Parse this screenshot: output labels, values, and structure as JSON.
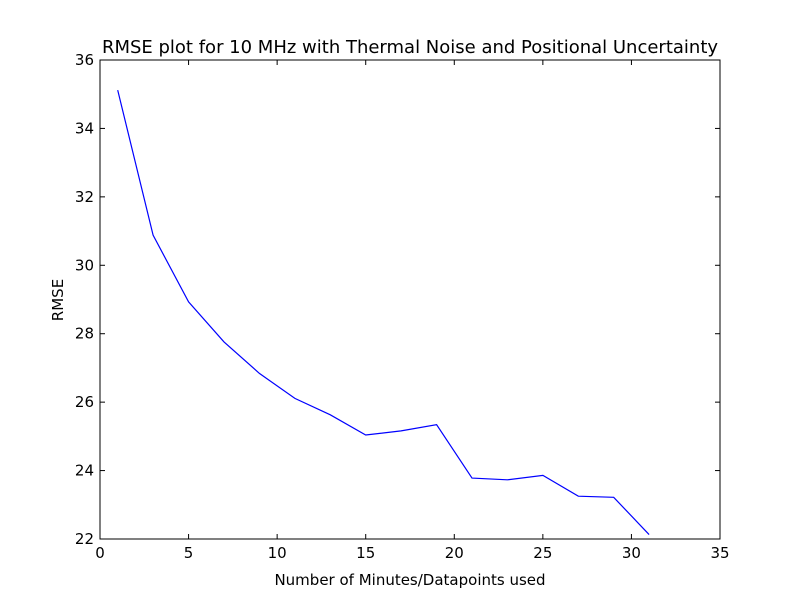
{
  "chart_data": {
    "type": "line",
    "title": "RMSE plot for 10 MHz with Thermal Noise and Positional Uncertainty",
    "xlabel": "Number of Minutes/Datapoints used",
    "ylabel": "RMSE",
    "xlim": [
      0,
      35
    ],
    "ylim": [
      22,
      36
    ],
    "xticks": [
      0,
      5,
      10,
      15,
      20,
      25,
      30,
      35
    ],
    "yticks": [
      22,
      24,
      26,
      28,
      30,
      32,
      34,
      36
    ],
    "grid": false,
    "line_color": "#0000ff",
    "series": [
      {
        "x": [
          1,
          3,
          5,
          7,
          9,
          11,
          13,
          15,
          17,
          19,
          21,
          23,
          25,
          27,
          29,
          31
        ],
        "values": [
          35.12,
          30.88,
          28.93,
          27.76,
          26.84,
          26.11,
          25.63,
          25.04,
          25.16,
          25.34,
          23.78,
          23.73,
          23.86,
          23.25,
          23.22,
          22.13
        ]
      }
    ]
  }
}
